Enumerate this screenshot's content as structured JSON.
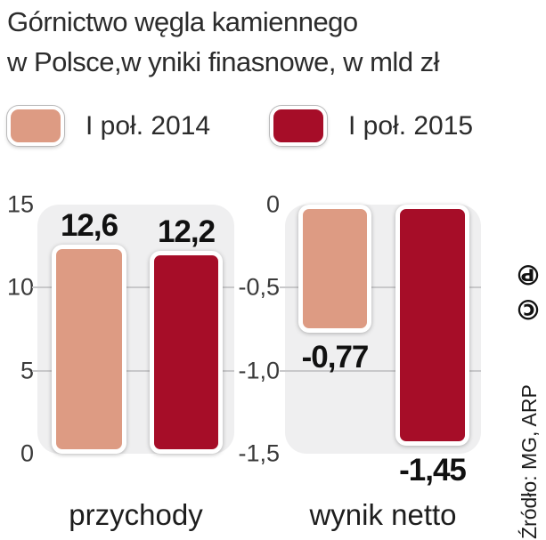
{
  "title": {
    "line1": "Górnictwo węgla kamiennego",
    "line2": "w Polsce,w yniki finasnowe, w mld zł"
  },
  "legend": [
    {
      "label": "I poł. 2014",
      "color": "#dd9b83"
    },
    {
      "label": "I poł. 2015",
      "color": "#a60d28"
    }
  ],
  "source": {
    "text": "Źródło: MG, ARP",
    "copyright": "©℗"
  },
  "colors": {
    "series_2014": "#dd9b83",
    "series_2015": "#a60d28",
    "panel_background": "#efeff0",
    "gridline": "#c8c8ca"
  },
  "chart_data": [
    {
      "type": "bar",
      "title": "przychody",
      "categories": [
        "I poł. 2014",
        "I poł. 2015"
      ],
      "values": [
        12.6,
        12.2
      ],
      "value_labels": [
        "12,6",
        "12,2"
      ],
      "yticks": [
        "15",
        "10",
        "5",
        "0"
      ],
      "ylim": [
        0,
        15
      ],
      "bar_colors": [
        "#dd9b83",
        "#a60d28"
      ],
      "grid": true,
      "legend_position": "top",
      "ylabel": "mld zł"
    },
    {
      "type": "bar",
      "title": "wynik netto",
      "categories": [
        "I poł. 2014",
        "I poł. 2015"
      ],
      "values": [
        -0.77,
        -1.45
      ],
      "value_labels": [
        "-0,77",
        "-1,45"
      ],
      "yticks": [
        "0",
        "-0,5",
        "-1,0",
        "-1,5"
      ],
      "ylim": [
        -1.5,
        0
      ],
      "bar_colors": [
        "#dd9b83",
        "#a60d28"
      ],
      "grid": true,
      "legend_position": "top",
      "ylabel": "mld zł"
    }
  ]
}
